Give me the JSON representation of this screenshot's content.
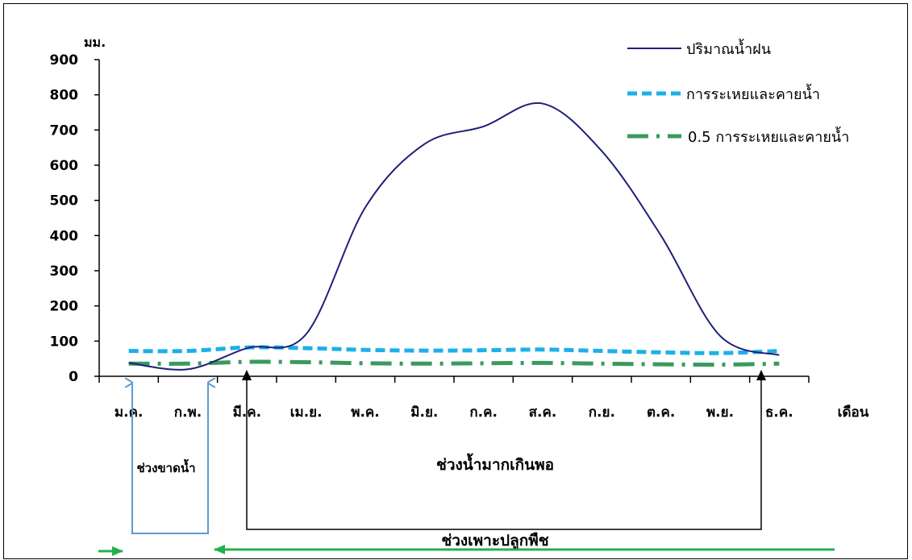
{
  "chart_data": {
    "type": "line",
    "ylabel": "มม.",
    "xlabel": "เดือน",
    "ylim": [
      0,
      900
    ],
    "y_ticks": [
      0,
      100,
      200,
      300,
      400,
      500,
      600,
      700,
      800,
      900
    ],
    "categories": [
      "ม.ค.",
      "ก.พ.",
      "มี.ค.",
      "เม.ย.",
      "พ.ค.",
      "มิ.ย.",
      "ก.ค.",
      "ส.ค.",
      "ก.ย.",
      "ต.ค.",
      "พ.ย.",
      "ธ.ค."
    ],
    "grid": false,
    "legend_position": "top-right",
    "series": [
      {
        "name": "ปริมาณน้ำฝน",
        "color": "#1f1f7a",
        "style": "solid",
        "values": [
          38,
          20,
          80,
          120,
          480,
          660,
          710,
          775,
          640,
          400,
          115,
          60
        ]
      },
      {
        "name": "การระเหยและคายน้ำ",
        "color": "#1cb0e8",
        "style": "dash",
        "values": [
          72,
          72,
          82,
          80,
          75,
          73,
          74,
          76,
          72,
          68,
          66,
          72
        ]
      },
      {
        "name": "0.5 การระเหยและคายน้ำ",
        "color": "#3a9a5e",
        "style": "dash-dot",
        "values": [
          36,
          36,
          41,
          40,
          37,
          36,
          37,
          38,
          36,
          34,
          33,
          36
        ]
      }
    ],
    "annotations": {
      "deficit": "ช่วงขาดน้ำ",
      "surplus": "ช่วงน้ำมากเกินพอ",
      "growing_season": "ช่วงเพาะปลูกพืช"
    }
  }
}
